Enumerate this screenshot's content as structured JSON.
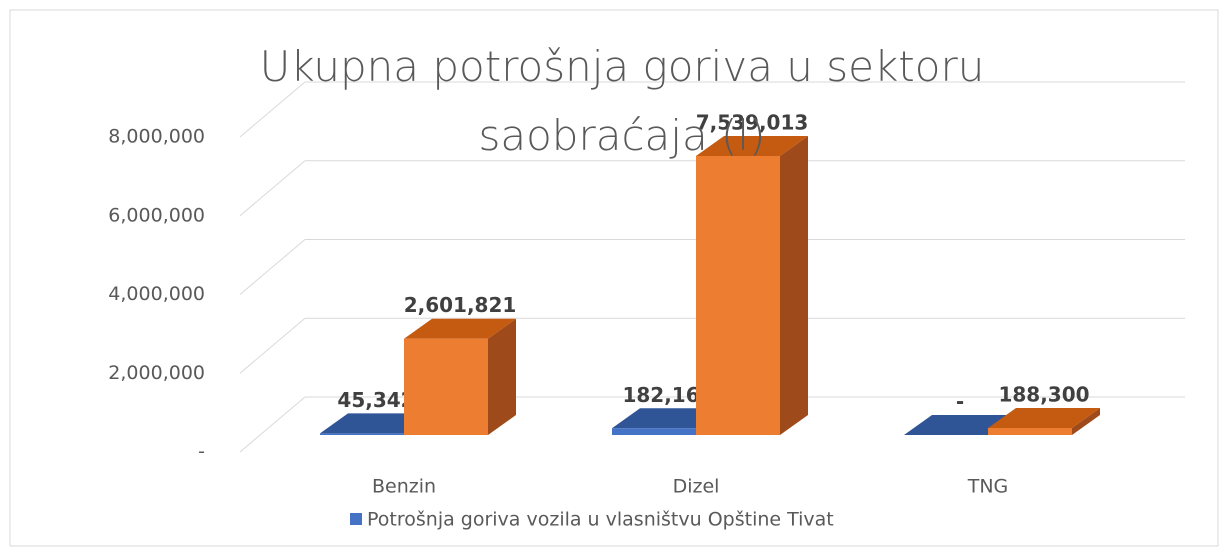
{
  "chart_data": {
    "type": "bar3d",
    "title": "Ukupna potrošnja goriva u sektoru saobraćaja (l)",
    "categories": [
      "Benzin",
      "Dizel",
      "TNG"
    ],
    "series": [
      {
        "name": "Potrošnja goriva vozila u vlasništvu Opštine Tivat",
        "color": "#4472c4",
        "values": [
          45342,
          182165,
          0
        ],
        "value_labels": [
          "45,342",
          "182,165",
          "-"
        ]
      },
      {
        "color": "#ed7d31",
        "values": [
          2601821,
          7539013,
          188300
        ],
        "value_labels": [
          "2,601,821",
          "7,539,013",
          "188,300"
        ]
      }
    ],
    "ylim": [
      0,
      8000000
    ],
    "yticks": [
      {
        "value": 0,
        "label": "-"
      },
      {
        "value": 2000000,
        "label": "2,000,000"
      },
      {
        "value": 4000000,
        "label": "4,000,000"
      },
      {
        "value": 6000000,
        "label": "6,000,000"
      },
      {
        "value": 8000000,
        "label": "8,000,000"
      }
    ],
    "grid": true,
    "legend": "bottom"
  }
}
